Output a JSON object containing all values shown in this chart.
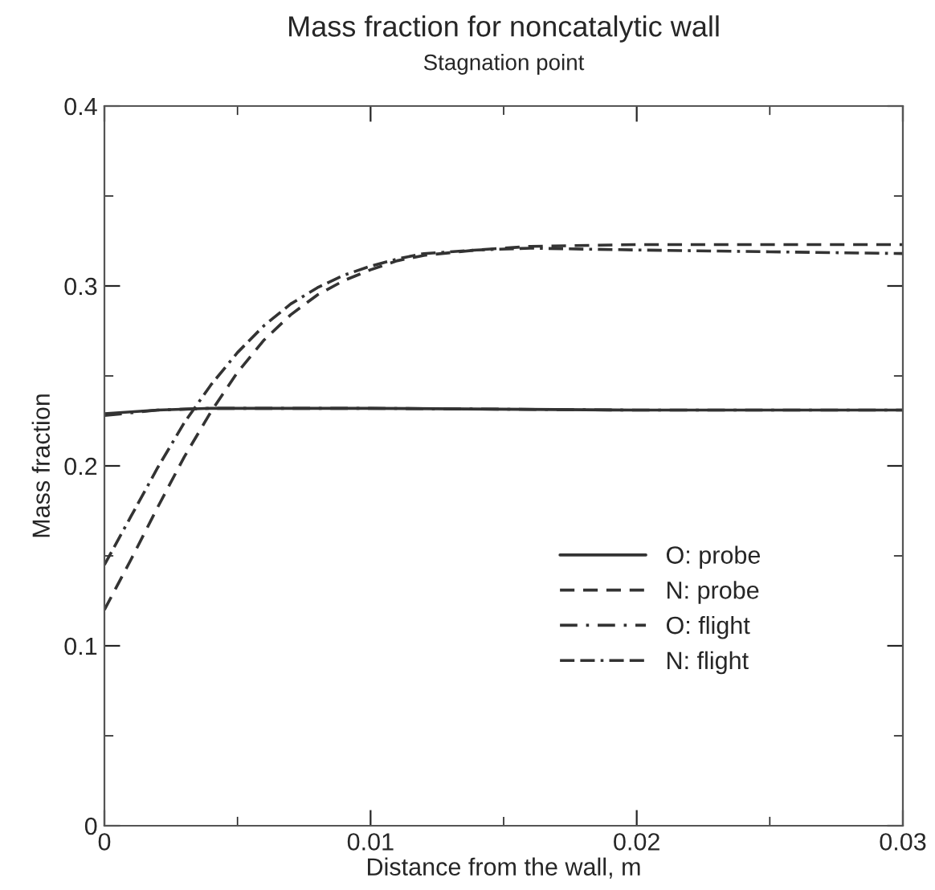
{
  "chart_data": {
    "type": "line",
    "title": "Mass fraction for noncatalytic wall",
    "subtitle": "Stagnation point",
    "xlabel": "Distance from the wall, m",
    "ylabel": "Mass fraction",
    "xlim": [
      0,
      0.03
    ],
    "ylim": [
      0,
      0.4
    ],
    "xticks": [
      0,
      0.01,
      0.02,
      0.03
    ],
    "yticks": [
      0,
      0.1,
      0.2,
      0.3,
      0.4
    ],
    "grid": false,
    "legend": "lower right",
    "marker": "none",
    "series": [
      {
        "name": "O: probe",
        "color": "#333333",
        "line_style": "solid",
        "x": [
          0,
          0.002,
          0.004,
          0.01,
          0.02,
          0.03
        ],
        "values": [
          0.229,
          0.231,
          0.232,
          0.232,
          0.231,
          0.231
        ]
      },
      {
        "name": "N: probe",
        "color": "#333333",
        "line_style": "dashed",
        "x": [
          0,
          0.001,
          0.002,
          0.003,
          0.004,
          0.005,
          0.006,
          0.007,
          0.008,
          0.009,
          0.01,
          0.011,
          0.012,
          0.014,
          0.016,
          0.02,
          0.03
        ],
        "values": [
          0.12,
          0.148,
          0.177,
          0.205,
          0.23,
          0.252,
          0.27,
          0.284,
          0.295,
          0.303,
          0.309,
          0.314,
          0.317,
          0.32,
          0.322,
          0.323,
          0.323
        ]
      },
      {
        "name": "O: flight",
        "color": "#333333",
        "line_style": "dashdot",
        "x": [
          0,
          0.002,
          0.004,
          0.01,
          0.02,
          0.03
        ],
        "values": [
          0.228,
          0.231,
          0.232,
          0.232,
          0.231,
          0.231
        ]
      },
      {
        "name": "N: flight",
        "color": "#333333",
        "line_style": "dashdashdot",
        "x": [
          0,
          0.001,
          0.002,
          0.003,
          0.004,
          0.005,
          0.006,
          0.007,
          0.008,
          0.009,
          0.01,
          0.011,
          0.012,
          0.014,
          0.016,
          0.02,
          0.025,
          0.03
        ],
        "values": [
          0.145,
          0.172,
          0.199,
          0.224,
          0.245,
          0.263,
          0.278,
          0.29,
          0.299,
          0.306,
          0.311,
          0.315,
          0.318,
          0.32,
          0.321,
          0.32,
          0.319,
          0.318
        ]
      }
    ]
  }
}
